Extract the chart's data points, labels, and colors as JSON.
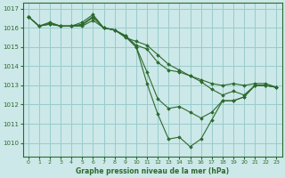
{
  "title": "Graphe pression niveau de la mer (hPa)",
  "bg_color": "#cce8e8",
  "grid_color": "#99cccc",
  "line_color": "#2d6a2d",
  "xlim": [
    -0.5,
    23.5
  ],
  "ylim": [
    1009.3,
    1017.3
  ],
  "yticks": [
    1010,
    1011,
    1012,
    1013,
    1014,
    1015,
    1016,
    1017
  ],
  "xticks": [
    0,
    1,
    2,
    3,
    4,
    5,
    6,
    7,
    8,
    9,
    10,
    11,
    12,
    13,
    14,
    15,
    16,
    17,
    18,
    19,
    20,
    21,
    22,
    23
  ],
  "series": [
    [
      1016.6,
      1016.1,
      1016.2,
      1016.1,
      1016.1,
      1016.3,
      1016.7,
      1016.0,
      1015.9,
      1015.5,
      1015.3,
      1015.1,
      1014.6,
      1014.1,
      1013.8,
      1013.5,
      1013.3,
      1013.1,
      1013.0,
      1013.1,
      1013.0,
      1013.1,
      1013.1,
      1012.9
    ],
    [
      1016.6,
      1016.1,
      1016.2,
      1016.1,
      1016.1,
      1016.1,
      1016.4,
      1016.0,
      1015.9,
      1015.6,
      1015.1,
      1014.9,
      1014.2,
      1013.8,
      1013.7,
      1013.5,
      1013.2,
      1012.8,
      1012.5,
      1012.7,
      1012.5,
      1013.0,
      1013.0,
      1012.9
    ],
    [
      1016.6,
      1016.1,
      1016.3,
      1016.1,
      1016.1,
      1016.2,
      1016.6,
      1016.0,
      1015.9,
      1015.6,
      1015.0,
      1013.1,
      1011.5,
      1010.2,
      1010.3,
      1009.8,
      1010.2,
      1011.2,
      1012.2,
      1012.2,
      1012.4,
      1013.0,
      1013.0,
      1012.9
    ],
    [
      1016.6,
      1016.1,
      1016.25,
      1016.1,
      1016.1,
      1016.15,
      1016.55,
      1016.0,
      1015.9,
      1015.55,
      1015.0,
      1013.7,
      1012.3,
      1011.8,
      1011.9,
      1011.6,
      1011.3,
      1011.6,
      1012.2,
      1012.2,
      1012.4,
      1013.0,
      1013.0,
      1012.9
    ]
  ]
}
